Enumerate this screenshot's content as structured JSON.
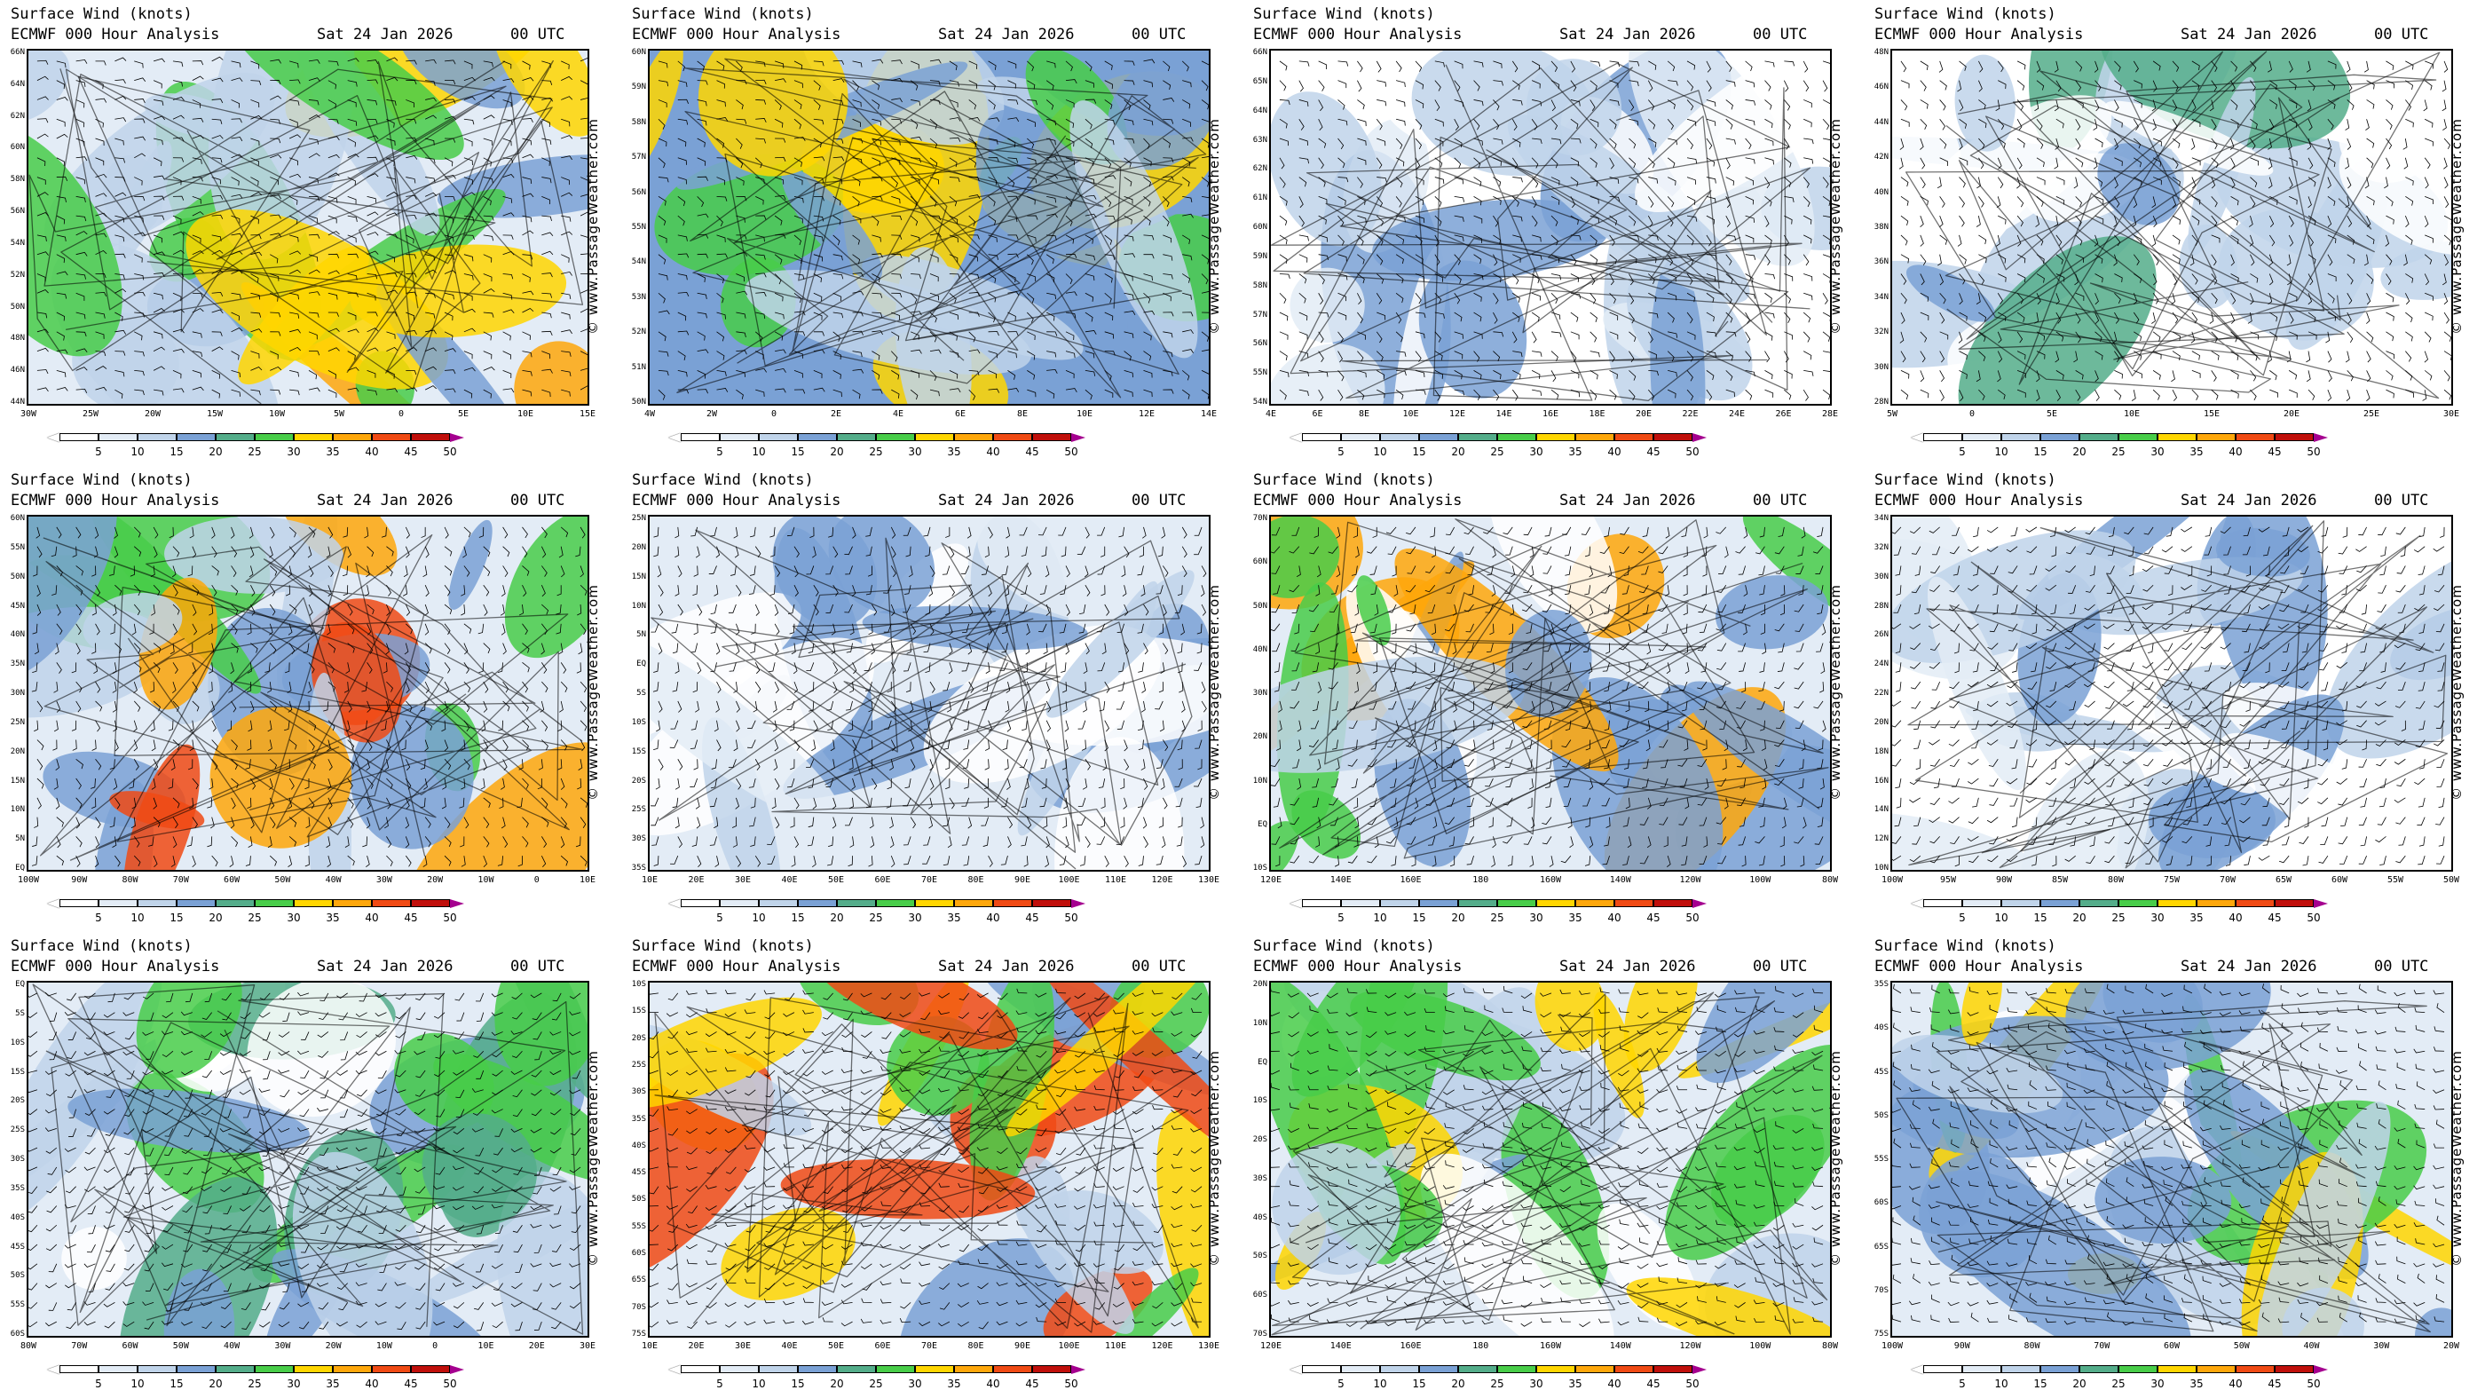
{
  "header": {
    "title": "Surface Wind (knots)",
    "model": "ECMWF 000 Hour Analysis",
    "date": "Sat 24 Jan 2026",
    "time": "00 UTC"
  },
  "copyright": "© www.PassageWeather.com",
  "legend": {
    "ticks": [
      "5",
      "10",
      "15",
      "20",
      "25",
      "30",
      "35",
      "40",
      "45",
      "50"
    ],
    "colors": [
      "#ffffff",
      "#e3ecf6",
      "#c0d4ea",
      "#7aa1d5",
      "#54ad8a",
      "#48cd49",
      "#ffd600",
      "#fea70b",
      "#f04a14",
      "#c00f0b",
      "#a5008f"
    ]
  },
  "panels": [
    {
      "region": "ne-atlantic",
      "lat": [
        "66N",
        "64N",
        "62N",
        "60N",
        "58N",
        "56N",
        "54N",
        "52N",
        "50N",
        "48N",
        "46N",
        "44N"
      ],
      "lon": [
        "30W",
        "25W",
        "20W",
        "15W",
        "10W",
        "5W",
        "0",
        "5E",
        "10E",
        "15E"
      ],
      "palette": [
        "#c0d4ea",
        "#7aa1d5",
        "#48cd49",
        "#ffd600",
        "#fea70b"
      ],
      "bg": "#e3ecf6"
    },
    {
      "region": "north-sea",
      "lat": [
        "60N",
        "59N",
        "58N",
        "57N",
        "56N",
        "55N",
        "54N",
        "53N",
        "52N",
        "51N",
        "50N"
      ],
      "lon": [
        "4W",
        "2W",
        "0",
        "2E",
        "4E",
        "6E",
        "8E",
        "10E",
        "12E",
        "14E"
      ],
      "palette": [
        "#7aa1d5",
        "#48cd49",
        "#ffd600",
        "#c0d4ea"
      ],
      "bg": "#7aa1d5"
    },
    {
      "region": "baltic",
      "lat": [
        "66N",
        "65N",
        "64N",
        "63N",
        "62N",
        "61N",
        "60N",
        "59N",
        "58N",
        "57N",
        "56N",
        "55N",
        "54N"
      ],
      "lon": [
        "4E",
        "6E",
        "8E",
        "10E",
        "12E",
        "14E",
        "16E",
        "18E",
        "20E",
        "22E",
        "24E",
        "26E",
        "28E"
      ],
      "palette": [
        "#c0d4ea",
        "#7aa1d5",
        "#e3ecf6",
        "#ffffff"
      ],
      "bg": "#ffffff"
    },
    {
      "region": "mediterranean",
      "lat": [
        "48N",
        "46N",
        "44N",
        "42N",
        "40N",
        "38N",
        "36N",
        "34N",
        "32N",
        "30N",
        "28N"
      ],
      "lon": [
        "5W",
        "0",
        "5E",
        "10E",
        "15E",
        "20E",
        "25E",
        "30E"
      ],
      "palette": [
        "#c0d4ea",
        "#7aa1d5",
        "#54ad8a",
        "#ffffff"
      ],
      "bg": "#ffffff"
    },
    {
      "region": "north-atlantic",
      "lat": [
        "60N",
        "55N",
        "50N",
        "45N",
        "40N",
        "35N",
        "30N",
        "25N",
        "20N",
        "15N",
        "10N",
        "5N",
        "EQ"
      ],
      "lon": [
        "100W",
        "90W",
        "80W",
        "70W",
        "60W",
        "50W",
        "40W",
        "30W",
        "20W",
        "10W",
        "0",
        "10E"
      ],
      "palette": [
        "#c0d4ea",
        "#7aa1d5",
        "#48cd49",
        "#fea70b",
        "#f04a14"
      ],
      "bg": "#e3ecf6"
    },
    {
      "region": "indian-ocean",
      "lat": [
        "25N",
        "20N",
        "15N",
        "10N",
        "5N",
        "EQ",
        "5S",
        "10S",
        "15S",
        "20S",
        "25S",
        "30S",
        "35S"
      ],
      "lon": [
        "10E",
        "20E",
        "30E",
        "40E",
        "50E",
        "60E",
        "70E",
        "80E",
        "90E",
        "100E",
        "110E",
        "120E",
        "130E"
      ],
      "palette": [
        "#c0d4ea",
        "#7aa1d5",
        "#e3ecf6",
        "#ffffff"
      ],
      "bg": "#e3ecf6"
    },
    {
      "region": "north-pacific",
      "lat": [
        "70N",
        "60N",
        "50N",
        "40N",
        "30N",
        "20N",
        "10N",
        "EQ",
        "10S"
      ],
      "lon": [
        "120E",
        "140E",
        "160E",
        "180",
        "160W",
        "140W",
        "120W",
        "100W",
        "80W"
      ],
      "palette": [
        "#c0d4ea",
        "#7aa1d5",
        "#48cd49",
        "#fea70b",
        "#ffffff"
      ],
      "bg": "#e3ecf6"
    },
    {
      "region": "caribbean",
      "lat": [
        "34N",
        "32N",
        "30N",
        "28N",
        "26N",
        "24N",
        "22N",
        "20N",
        "18N",
        "16N",
        "14N",
        "12N",
        "10N"
      ],
      "lon": [
        "100W",
        "95W",
        "90W",
        "85W",
        "80W",
        "75W",
        "70W",
        "65W",
        "60W",
        "55W",
        "50W"
      ],
      "palette": [
        "#c0d4ea",
        "#7aa1d5",
        "#e3ecf6",
        "#ffffff"
      ],
      "bg": "#ffffff"
    },
    {
      "region": "south-atlantic",
      "lat": [
        "EQ",
        "5S",
        "10S",
        "15S",
        "20S",
        "25S",
        "30S",
        "35S",
        "40S",
        "45S",
        "50S",
        "55S",
        "60S"
      ],
      "lon": [
        "80W",
        "70W",
        "60W",
        "50W",
        "40W",
        "30W",
        "20W",
        "10W",
        "0",
        "10E",
        "20E",
        "30E"
      ],
      "palette": [
        "#c0d4ea",
        "#7aa1d5",
        "#48cd49",
        "#54ad8a",
        "#ffffff"
      ],
      "bg": "#e3ecf6"
    },
    {
      "region": "south-indian",
      "lat": [
        "10S",
        "15S",
        "20S",
        "25S",
        "30S",
        "35S",
        "40S",
        "45S",
        "50S",
        "55S",
        "60S",
        "65S",
        "70S",
        "75S"
      ],
      "lon": [
        "10E",
        "20E",
        "30E",
        "40E",
        "50E",
        "60E",
        "70E",
        "80E",
        "90E",
        "100E",
        "110E",
        "120E",
        "130E"
      ],
      "palette": [
        "#c0d4ea",
        "#7aa1d5",
        "#48cd49",
        "#ffd600",
        "#f04a14"
      ],
      "bg": "#e3ecf6"
    },
    {
      "region": "south-pacific",
      "lat": [
        "20N",
        "10N",
        "EQ",
        "10S",
        "20S",
        "30S",
        "40S",
        "50S",
        "60S",
        "70S"
      ],
      "lon": [
        "120E",
        "140E",
        "160E",
        "180",
        "160W",
        "140W",
        "120W",
        "100W",
        "80W"
      ],
      "palette": [
        "#c0d4ea",
        "#7aa1d5",
        "#48cd49",
        "#ffd600",
        "#ffffff"
      ],
      "bg": "#e3ecf6"
    },
    {
      "region": "drake-passage",
      "lat": [
        "35S",
        "40S",
        "45S",
        "50S",
        "55S",
        "60S",
        "65S",
        "70S",
        "75S"
      ],
      "lon": [
        "100W",
        "90W",
        "80W",
        "70W",
        "60W",
        "50W",
        "40W",
        "30W",
        "20W"
      ],
      "palette": [
        "#c0d4ea",
        "#7aa1d5",
        "#48cd49",
        "#ffd600",
        "#ffffff"
      ],
      "bg": "#e3ecf6"
    }
  ]
}
